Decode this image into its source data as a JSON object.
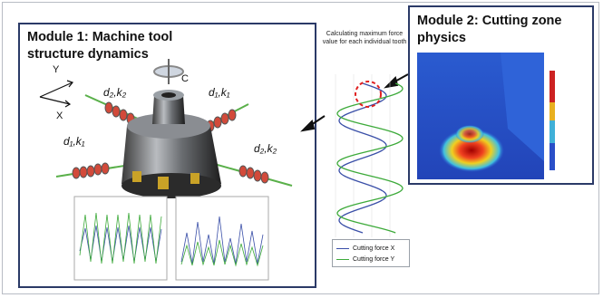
{
  "module1": {
    "title": "Module 1: Machine tool structure dynamics"
  },
  "module2": {
    "title": "Module 2: Cutting zone physics"
  },
  "annotation": "Calculating maximum force value for each individual tooth",
  "axes": {
    "y": "Y",
    "x": "X",
    "c": "C"
  },
  "springs": {
    "top_left": "d₂,k₂",
    "top_right": "d₁,k₁",
    "bottom_left": "d₁,k₁",
    "bottom_right": "d₂,k₂"
  },
  "legend": {
    "x_label": "Cutting force X",
    "y_label": "Cutting force Y"
  },
  "colors": {
    "frame": "#2b3a67",
    "force_x": "#3a4fa8",
    "force_y": "#3daa3a",
    "spring": "#c0392b",
    "highlight": "#e02020"
  },
  "chart_data": {
    "type": "line",
    "series": [
      {
        "name": "Cutting force X",
        "values": [
          0.2,
          0.9,
          0.2,
          0.9,
          0.2,
          0.9,
          0.2,
          0.9
        ]
      },
      {
        "name": "Cutting force Y",
        "values": [
          0.1,
          1.0,
          0.1,
          1.0,
          0.1,
          1.0,
          0.1,
          1.0
        ]
      }
    ]
  }
}
